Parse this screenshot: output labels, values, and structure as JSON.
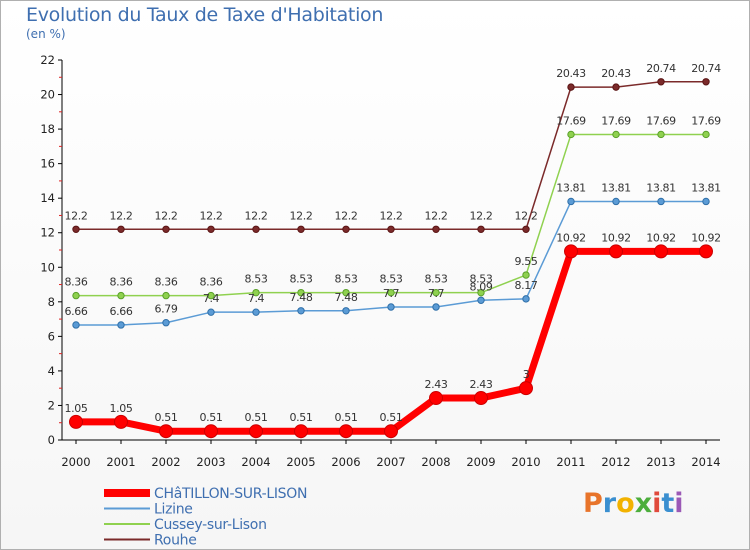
{
  "title": "Evolution du Taux de Taxe d'Habitation",
  "unit_label": "(en %)",
  "logo": {
    "text": "Proxiti",
    "colors": [
      "#e8742a",
      "#3a8fd0",
      "#f2b200",
      "#4cae3c",
      "#e04a3c",
      "#3a8fd0",
      "#9b59b6"
    ]
  },
  "chart_data": {
    "type": "line",
    "title": "Evolution du Taux de Taxe d'Habitation",
    "ylabel": "(en %)",
    "xlabel": "",
    "x": [
      2000,
      2001,
      2002,
      2003,
      2004,
      2005,
      2006,
      2007,
      2008,
      2009,
      2010,
      2011,
      2012,
      2013,
      2014
    ],
    "ylim": [
      0,
      22
    ],
    "yticks": [
      0,
      2,
      4,
      6,
      8,
      10,
      12,
      14,
      16,
      18,
      20,
      22
    ],
    "grid": false,
    "legend_position": "bottom-left",
    "series": [
      {
        "name": "CHâTILLON-SUR-LISON",
        "color": "#ff0000",
        "marker_edge": "#cc0000",
        "width": 7,
        "values": [
          1.05,
          1.05,
          0.51,
          0.51,
          0.51,
          0.51,
          0.51,
          0.51,
          2.43,
          2.43,
          3,
          10.92,
          10.92,
          10.92,
          10.92
        ],
        "labels": [
          "1.05",
          "1.05",
          "0.51",
          "0.51",
          "0.51",
          "0.51",
          "0.51",
          "0.51",
          "2.43",
          "2.43",
          "3",
          "10.92",
          "10.92",
          "10.92",
          "10.92"
        ]
      },
      {
        "name": "Lizine",
        "color": "#5b9bd5",
        "marker_edge": "#2f6fa8",
        "width": 1.5,
        "values": [
          6.66,
          6.66,
          6.79,
          7.4,
          7.4,
          7.48,
          7.48,
          7.7,
          7.7,
          8.09,
          8.17,
          13.81,
          13.81,
          13.81,
          13.81
        ],
        "labels": [
          "6.66",
          "6.66",
          "6.79",
          "7.4",
          "7.4",
          "7.48",
          "7.48",
          "7.7",
          "7.7",
          "8.09",
          "8.17",
          "13.81",
          "13.81",
          "13.81",
          "13.81"
        ]
      },
      {
        "name": "Cussey-sur-Lison",
        "color": "#8fd14f",
        "marker_edge": "#5aa02a",
        "width": 1.5,
        "values": [
          8.36,
          8.36,
          8.36,
          8.36,
          8.53,
          8.53,
          8.53,
          8.53,
          8.53,
          8.53,
          9.55,
          17.69,
          17.69,
          17.69,
          17.69
        ],
        "labels": [
          "8.36",
          "8.36",
          "8.36",
          "8.36",
          "8.53",
          "8.53",
          "8.53",
          "8.53",
          "8.53",
          "8.53",
          "9.55",
          "17.69",
          "17.69",
          "17.69",
          "17.69"
        ]
      },
      {
        "name": "Rouhe",
        "color": "#7b2a2a",
        "marker_edge": "#5a1414",
        "width": 1.5,
        "values": [
          12.2,
          12.2,
          12.2,
          12.2,
          12.2,
          12.2,
          12.2,
          12.2,
          12.2,
          12.2,
          12.2,
          20.43,
          20.43,
          20.74,
          20.74
        ],
        "labels": [
          "12.2",
          "12.2",
          "12.2",
          "12.2",
          "12.2",
          "12.2",
          "12.2",
          "12.2",
          "12.2",
          "12.2",
          "12.2",
          "20.43",
          "20.43",
          "20.74",
          "20.74"
        ]
      }
    ]
  }
}
